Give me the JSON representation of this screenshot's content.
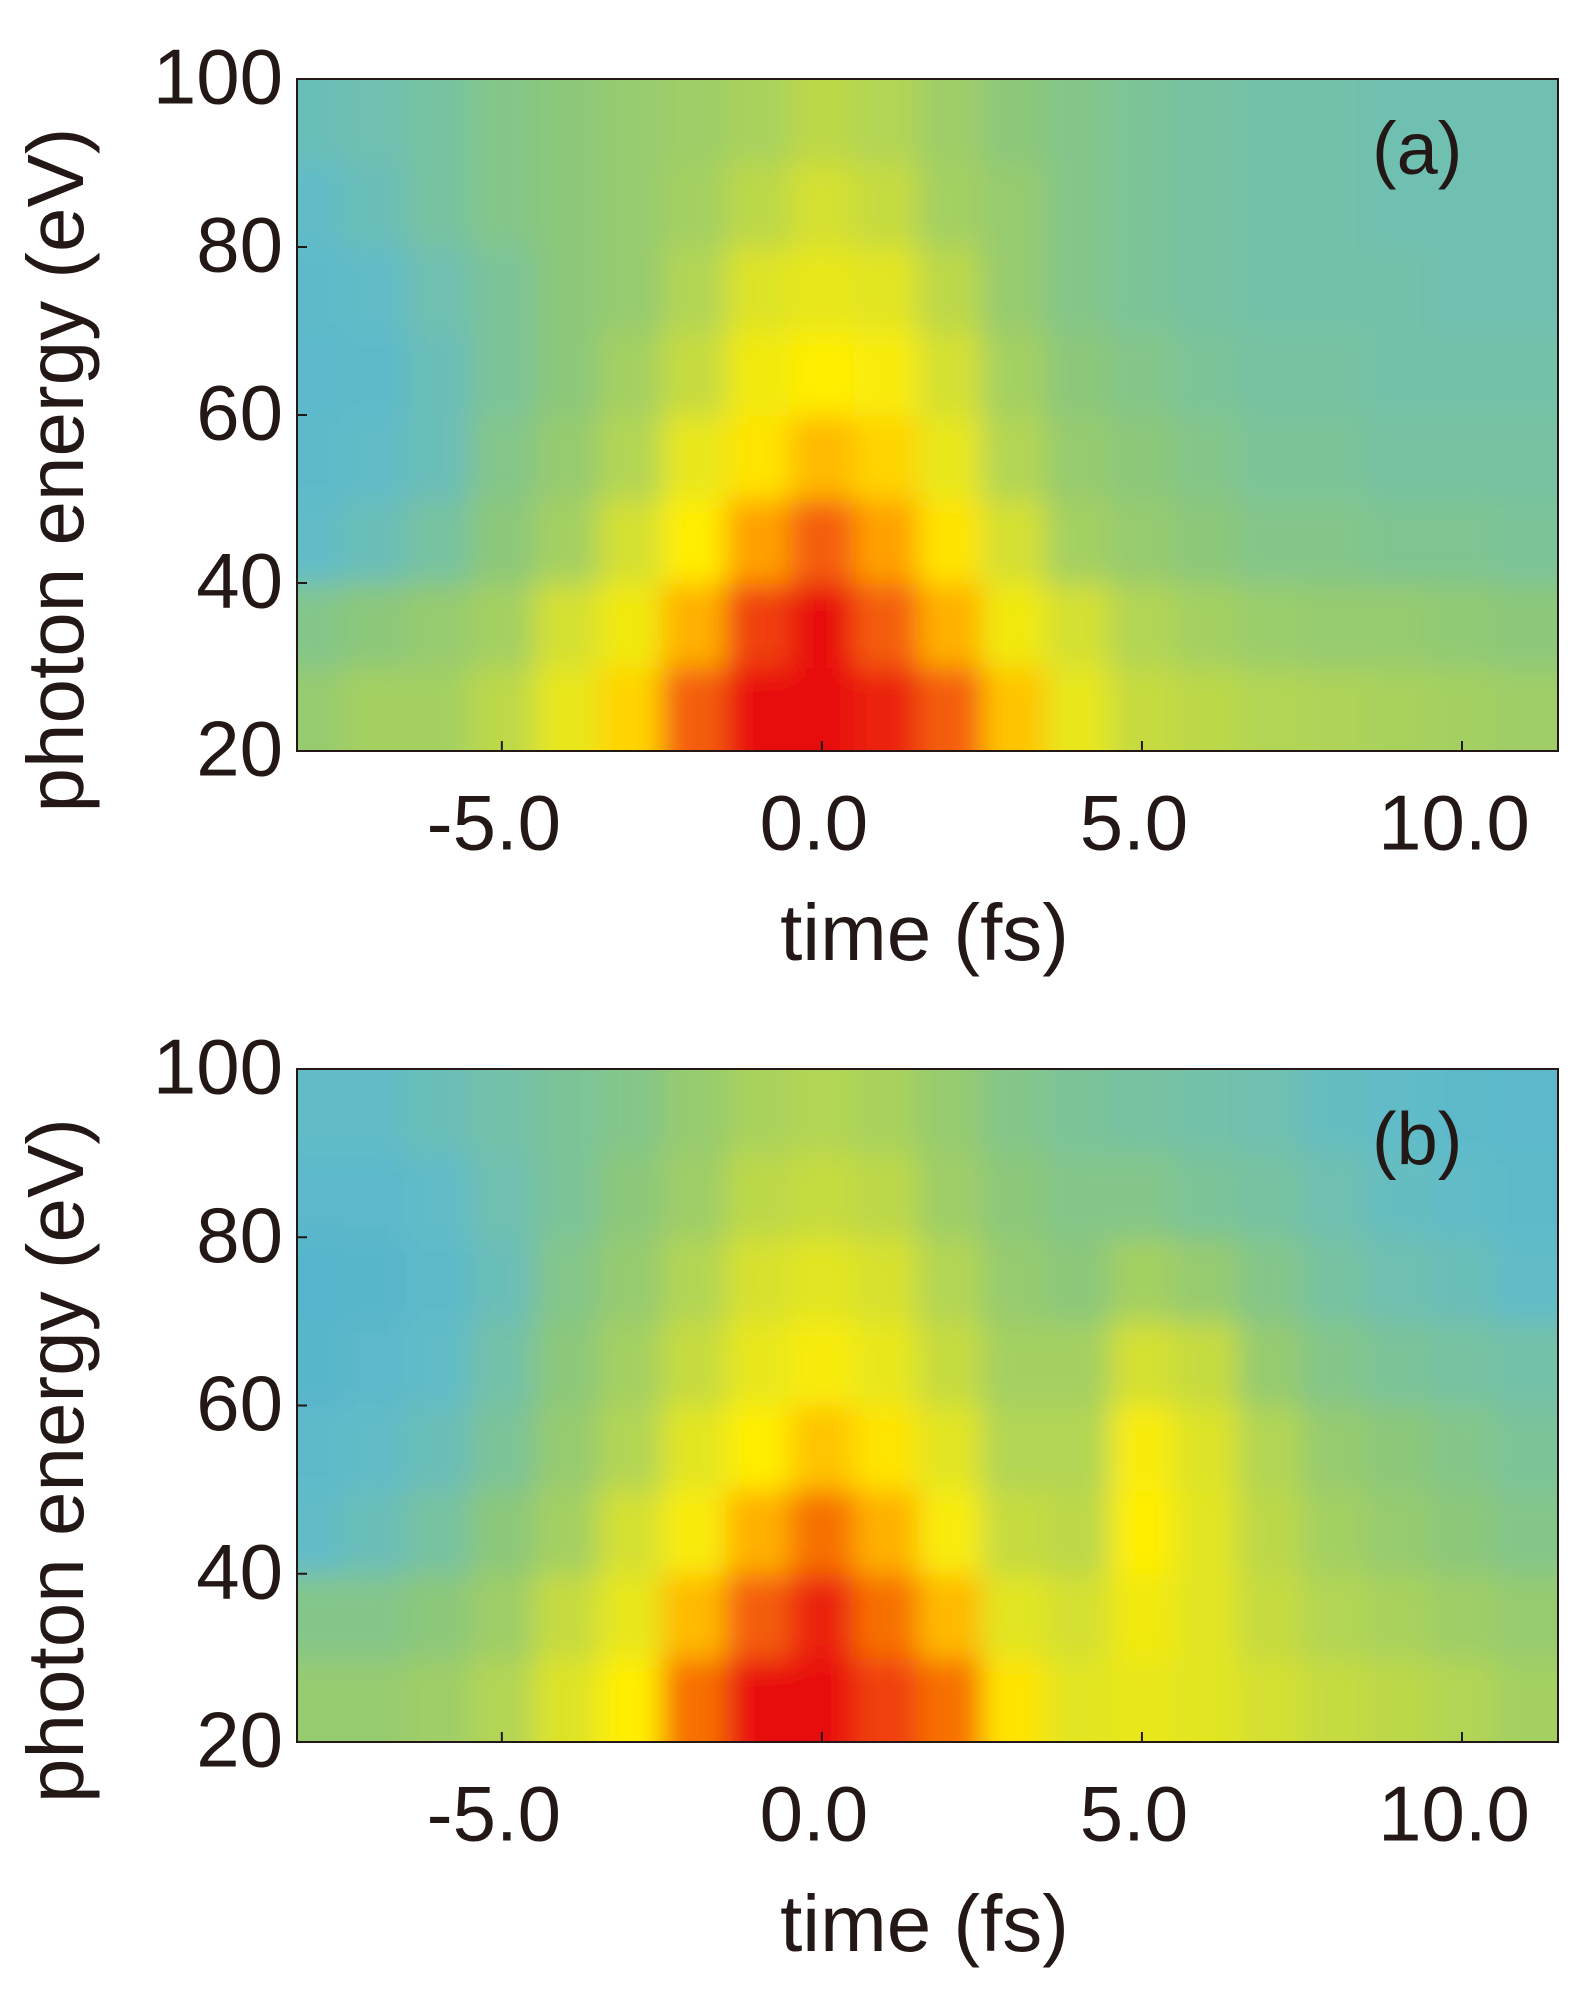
{
  "chart_data": [
    {
      "type": "heatmap",
      "annotation": "(a)",
      "x_label": "time (fs)",
      "y_label": "photon energy (eV)",
      "x": [
        -8,
        -7,
        -6,
        -5,
        -4,
        -3,
        -2,
        -1,
        0,
        1,
        2,
        3,
        4,
        5,
        6,
        7,
        8,
        9,
        10,
        11
      ],
      "y": [
        25,
        35,
        45,
        55,
        65,
        75,
        85,
        95
      ],
      "z": [
        [
          0.42,
          0.45,
          0.45,
          0.5,
          0.62,
          0.75,
          0.92,
          1,
          1,
          0.98,
          0.92,
          0.78,
          0.62,
          0.52,
          0.5,
          0.48,
          0.47,
          0.46,
          0.45,
          0.44
        ],
        [
          0.38,
          0.4,
          0.42,
          0.45,
          0.55,
          0.65,
          0.82,
          0.95,
          1,
          0.92,
          0.82,
          0.65,
          0.55,
          0.48,
          0.45,
          0.43,
          0.42,
          0.42,
          0.41,
          0.4
        ],
        [
          0.3,
          0.32,
          0.35,
          0.4,
          0.45,
          0.55,
          0.7,
          0.85,
          0.92,
          0.85,
          0.72,
          0.55,
          0.45,
          0.42,
          0.4,
          0.38,
          0.38,
          0.37,
          0.37,
          0.36
        ],
        [
          0.28,
          0.3,
          0.32,
          0.38,
          0.42,
          0.48,
          0.62,
          0.72,
          0.8,
          0.75,
          0.62,
          0.48,
          0.42,
          0.4,
          0.38,
          0.36,
          0.36,
          0.35,
          0.35,
          0.35
        ],
        [
          0.27,
          0.28,
          0.32,
          0.36,
          0.4,
          0.45,
          0.52,
          0.65,
          0.7,
          0.68,
          0.55,
          0.45,
          0.4,
          0.38,
          0.36,
          0.35,
          0.35,
          0.34,
          0.34,
          0.34
        ],
        [
          0.28,
          0.3,
          0.33,
          0.36,
          0.4,
          0.42,
          0.48,
          0.58,
          0.62,
          0.6,
          0.5,
          0.42,
          0.38,
          0.36,
          0.35,
          0.34,
          0.34,
          0.34,
          0.33,
          0.33
        ],
        [
          0.3,
          0.32,
          0.35,
          0.38,
          0.4,
          0.42,
          0.45,
          0.5,
          0.55,
          0.52,
          0.45,
          0.42,
          0.38,
          0.36,
          0.35,
          0.34,
          0.34,
          0.33,
          0.33,
          0.33
        ],
        [
          0.32,
          0.33,
          0.35,
          0.38,
          0.4,
          0.42,
          0.44,
          0.46,
          0.5,
          0.48,
          0.44,
          0.4,
          0.38,
          0.36,
          0.35,
          0.34,
          0.34,
          0.33,
          0.33,
          0.33
        ]
      ],
      "xlim": [
        -8.2,
        11.5
      ],
      "ylim": [
        20,
        100
      ],
      "xticks": [
        {
          "value": -5,
          "label": "-5.0"
        },
        {
          "value": 0,
          "label": "0.0"
        },
        {
          "value": 5,
          "label": "5.0"
        },
        {
          "value": 10,
          "label": "10.0"
        }
      ],
      "yticks": [
        20,
        40,
        60,
        80,
        100
      ],
      "colorscale": [
        [
          0,
          "#1e8fe0"
        ],
        [
          0.3,
          "#62bcc8"
        ],
        [
          0.4,
          "#8cc87a"
        ],
        [
          0.55,
          "#d4e032"
        ],
        [
          0.7,
          "#ffee00"
        ],
        [
          0.85,
          "#ffa000"
        ],
        [
          1,
          "#e81010"
        ]
      ]
    },
    {
      "type": "heatmap",
      "annotation": "(b)",
      "x_label": "time (fs)",
      "y_label": "photon energy (eV)",
      "x": [
        -8,
        -7,
        -6,
        -5,
        -4,
        -3,
        -2,
        -1,
        0,
        1,
        2,
        3,
        4,
        5,
        6,
        7,
        8,
        9,
        10,
        11
      ],
      "y": [
        25,
        35,
        45,
        55,
        65,
        75,
        85,
        95
      ],
      "z": [
        [
          0.42,
          0.42,
          0.44,
          0.48,
          0.58,
          0.7,
          0.9,
          1,
          1,
          0.95,
          0.9,
          0.72,
          0.6,
          0.62,
          0.6,
          0.55,
          0.52,
          0.5,
          0.48,
          0.45
        ],
        [
          0.38,
          0.38,
          0.4,
          0.44,
          0.52,
          0.62,
          0.8,
          0.92,
          0.98,
          0.9,
          0.8,
          0.6,
          0.55,
          0.65,
          0.6,
          0.52,
          0.48,
          0.46,
          0.44,
          0.42
        ],
        [
          0.3,
          0.32,
          0.35,
          0.4,
          0.45,
          0.55,
          0.68,
          0.82,
          0.9,
          0.82,
          0.68,
          0.52,
          0.5,
          0.7,
          0.6,
          0.5,
          0.45,
          0.42,
          0.4,
          0.38
        ],
        [
          0.28,
          0.3,
          0.32,
          0.36,
          0.42,
          0.48,
          0.6,
          0.7,
          0.78,
          0.72,
          0.6,
          0.48,
          0.48,
          0.68,
          0.58,
          0.48,
          0.42,
          0.4,
          0.38,
          0.36
        ],
        [
          0.26,
          0.27,
          0.3,
          0.34,
          0.4,
          0.45,
          0.52,
          0.62,
          0.68,
          0.62,
          0.52,
          0.45,
          0.45,
          0.55,
          0.52,
          0.42,
          0.38,
          0.36,
          0.35,
          0.34
        ],
        [
          0.25,
          0.26,
          0.28,
          0.32,
          0.38,
          0.42,
          0.48,
          0.56,
          0.6,
          0.56,
          0.48,
          0.42,
          0.4,
          0.45,
          0.42,
          0.38,
          0.35,
          0.33,
          0.32,
          0.3
        ],
        [
          0.27,
          0.27,
          0.3,
          0.33,
          0.36,
          0.4,
          0.44,
          0.5,
          0.52,
          0.5,
          0.44,
          0.4,
          0.38,
          0.38,
          0.36,
          0.35,
          0.33,
          0.31,
          0.3,
          0.28
        ],
        [
          0.3,
          0.3,
          0.32,
          0.34,
          0.36,
          0.38,
          0.42,
          0.46,
          0.48,
          0.46,
          0.42,
          0.38,
          0.36,
          0.35,
          0.34,
          0.33,
          0.31,
          0.3,
          0.28,
          0.27
        ]
      ],
      "xlim": [
        -8.2,
        11.5
      ],
      "ylim": [
        20,
        100
      ],
      "xticks": [
        {
          "value": -5,
          "label": "-5.0"
        },
        {
          "value": 0,
          "label": "0.0"
        },
        {
          "value": 5,
          "label": "5.0"
        },
        {
          "value": 10,
          "label": "10.0"
        }
      ],
      "yticks": [
        20,
        40,
        60,
        80,
        100
      ],
      "colorscale": [
        [
          0,
          "#1e8fe0"
        ],
        [
          0.3,
          "#62bcc8"
        ],
        [
          0.4,
          "#8cc87a"
        ],
        [
          0.55,
          "#d4e032"
        ],
        [
          0.7,
          "#ffee00"
        ],
        [
          0.85,
          "#ffa000"
        ],
        [
          1,
          "#e81010"
        ]
      ]
    }
  ]
}
